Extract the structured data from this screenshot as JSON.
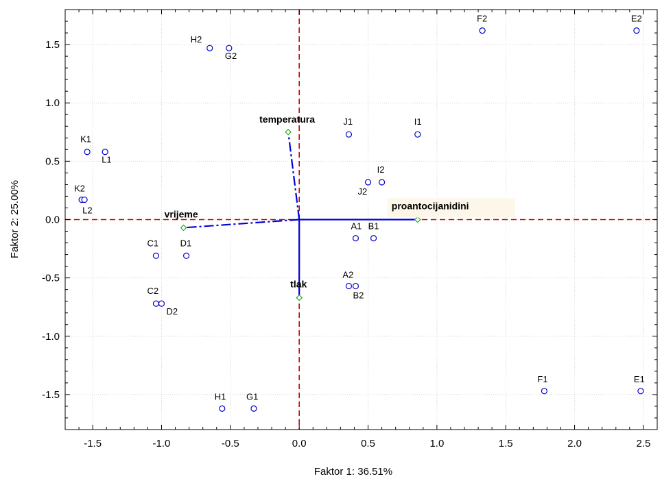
{
  "chart_data": {
    "type": "scatter",
    "title": "",
    "xlabel": "Faktor 1: 36.51%",
    "ylabel": "Faktor 2: 25.00%",
    "xlim": [
      -1.7,
      2.6
    ],
    "ylim": [
      -1.8,
      1.8
    ],
    "x_ticks": [
      -1.5,
      -1.0,
      -0.5,
      0.0,
      0.5,
      1.0,
      1.5,
      2.0,
      2.5
    ],
    "y_ticks": [
      -1.5,
      -1.0,
      -0.5,
      0.0,
      0.5,
      1.0,
      1.5
    ],
    "x_tick_labels": [
      "-1.5",
      "-1.0",
      "-0.5",
      "0.0",
      "0.5",
      "1.0",
      "1.5",
      "2.0",
      "2.5"
    ],
    "y_tick_labels": [
      "-1.5",
      "-1.0",
      "-0.5",
      "0.0",
      "0.5",
      "1.0",
      "1.5"
    ],
    "grid": true,
    "point_color": "#0000cc",
    "vector_color": "#0000dd",
    "axis_line_color": "#cc0000",
    "vector_marker_color": "#22aa22",
    "cases": [
      {
        "label": "H2",
        "x": -0.65,
        "y": 1.47
      },
      {
        "label": "G2",
        "x": -0.51,
        "y": 1.47
      },
      {
        "label": "F2",
        "x": 1.33,
        "y": 1.62
      },
      {
        "label": "E2",
        "x": 2.45,
        "y": 1.62
      },
      {
        "label": "K1",
        "x": -1.54,
        "y": 0.58
      },
      {
        "label": "L1",
        "x": -1.41,
        "y": 0.58
      },
      {
        "label": "J1",
        "x": 0.36,
        "y": 0.73
      },
      {
        "label": "I1",
        "x": 0.86,
        "y": 0.73
      },
      {
        "label": "K2",
        "x": -1.58,
        "y": 0.17
      },
      {
        "label": "L2",
        "x": -1.56,
        "y": 0.17
      },
      {
        "label": "J2",
        "x": 0.5,
        "y": 0.32
      },
      {
        "label": "I2",
        "x": 0.6,
        "y": 0.32
      },
      {
        "label": "A1",
        "x": 0.41,
        "y": -0.16
      },
      {
        "label": "B1",
        "x": 0.54,
        "y": -0.16
      },
      {
        "label": "C1",
        "x": -1.04,
        "y": -0.31
      },
      {
        "label": "D1",
        "x": -0.82,
        "y": -0.31
      },
      {
        "label": "A2",
        "x": 0.36,
        "y": -0.57
      },
      {
        "label": "B2",
        "x": 0.41,
        "y": -0.57
      },
      {
        "label": "C2",
        "x": -1.04,
        "y": -0.72
      },
      {
        "label": "D2",
        "x": -1.0,
        "y": -0.72
      },
      {
        "label": "F1",
        "x": 1.78,
        "y": -1.47
      },
      {
        "label": "E1",
        "x": 2.48,
        "y": -1.47
      },
      {
        "label": "H1",
        "x": -0.56,
        "y": -1.62
      },
      {
        "label": "G1",
        "x": -0.33,
        "y": -1.62
      }
    ],
    "variables": [
      {
        "label": "temperatura",
        "x": -0.08,
        "y": 0.75
      },
      {
        "label": "vrijeme",
        "x": -0.84,
        "y": -0.07
      },
      {
        "label": "proantocijanidini",
        "x": 0.86,
        "y": 0.0
      },
      {
        "label": "tlak",
        "x": 0.0,
        "y": -0.67
      }
    ]
  }
}
